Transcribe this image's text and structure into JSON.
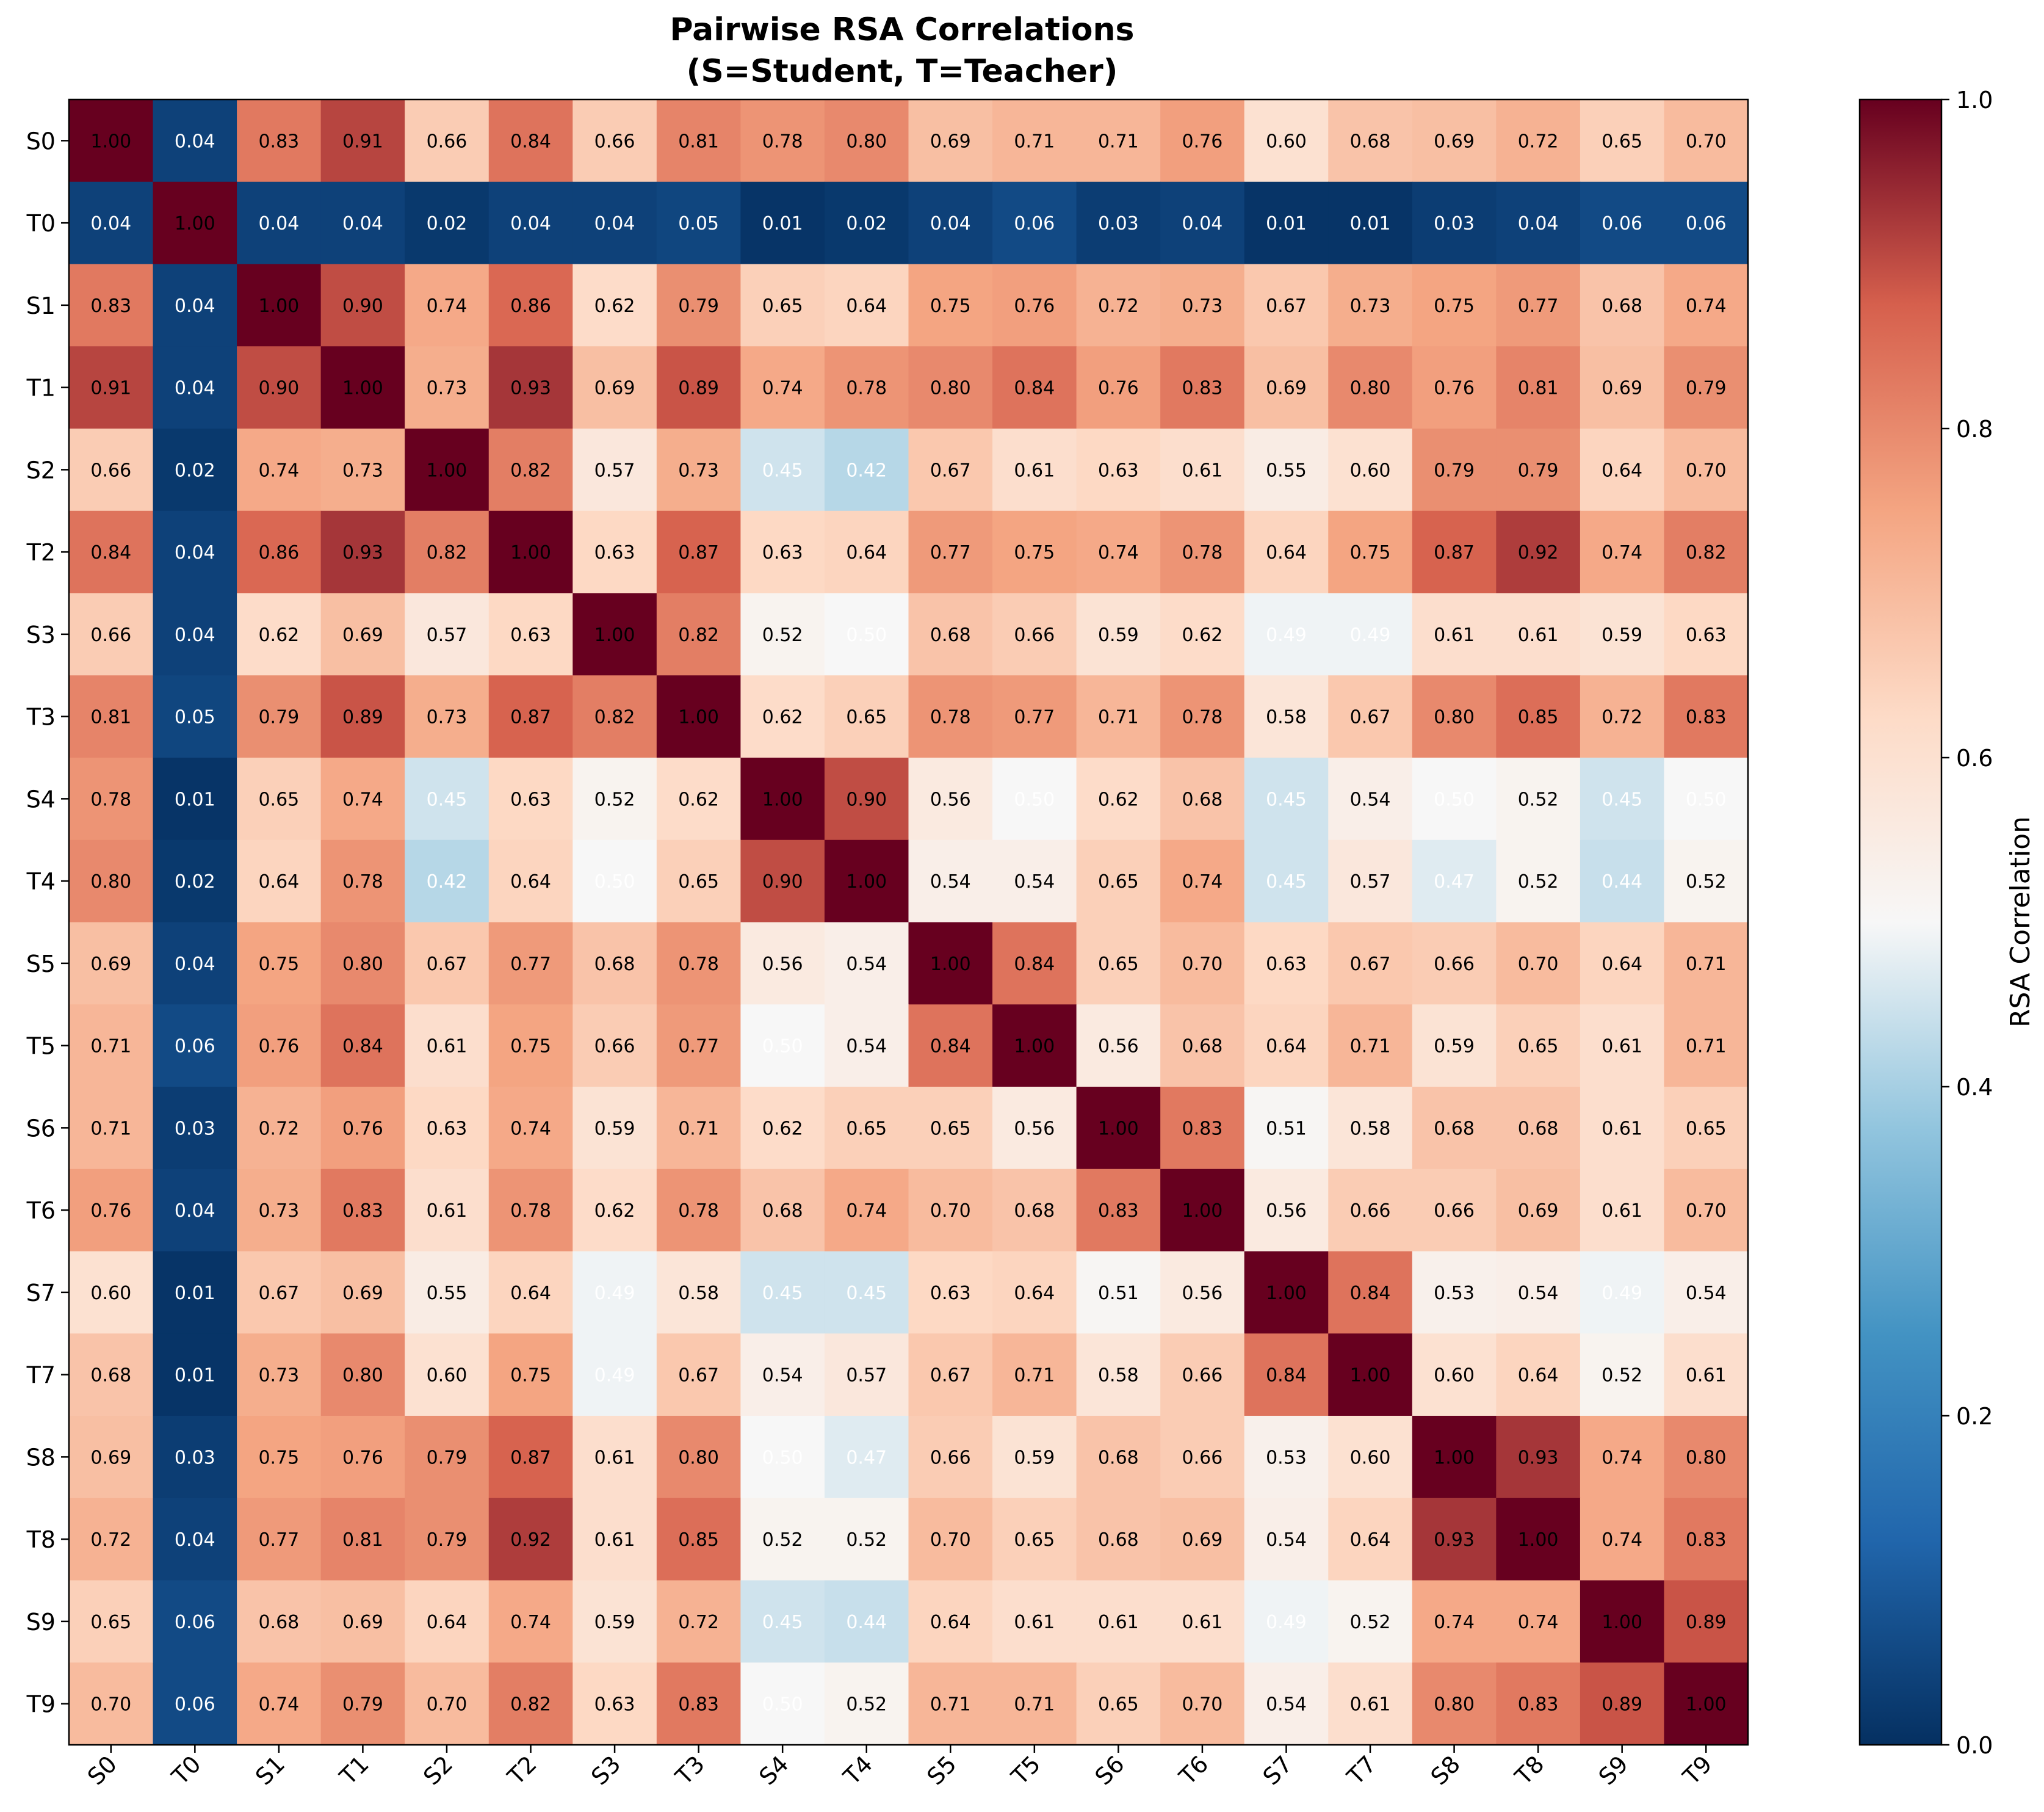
{
  "chart_data": {
    "type": "heatmap",
    "title": "Pairwise RSA Correlations\n(S=Student, T=Teacher)",
    "title_lines": [
      "Pairwise RSA Correlations",
      "(S=Student, T=Teacher)"
    ],
    "labels": [
      "S0",
      "T0",
      "S1",
      "T1",
      "S2",
      "T2",
      "S3",
      "T3",
      "S4",
      "T4",
      "S5",
      "T5",
      "S6",
      "T6",
      "S7",
      "T7",
      "S8",
      "T8",
      "S9",
      "T9"
    ],
    "values": [
      [
        1.0,
        0.04,
        0.83,
        0.91,
        0.66,
        0.84,
        0.66,
        0.81,
        0.78,
        0.8,
        0.69,
        0.71,
        0.71,
        0.76,
        0.6,
        0.68,
        0.69,
        0.72,
        0.65,
        0.7
      ],
      [
        0.04,
        1.0,
        0.04,
        0.04,
        0.02,
        0.04,
        0.04,
        0.05,
        0.01,
        0.02,
        0.04,
        0.06,
        0.03,
        0.04,
        0.01,
        0.01,
        0.03,
        0.04,
        0.06,
        0.06
      ],
      [
        0.83,
        0.04,
        1.0,
        0.9,
        0.74,
        0.86,
        0.62,
        0.79,
        0.65,
        0.64,
        0.75,
        0.76,
        0.72,
        0.73,
        0.67,
        0.73,
        0.75,
        0.77,
        0.68,
        0.74
      ],
      [
        0.91,
        0.04,
        0.9,
        1.0,
        0.73,
        0.93,
        0.69,
        0.89,
        0.74,
        0.78,
        0.8,
        0.84,
        0.76,
        0.83,
        0.69,
        0.8,
        0.76,
        0.81,
        0.69,
        0.79
      ],
      [
        0.66,
        0.02,
        0.74,
        0.73,
        1.0,
        0.82,
        0.57,
        0.73,
        0.45,
        0.42,
        0.67,
        0.61,
        0.63,
        0.61,
        0.55,
        0.6,
        0.79,
        0.79,
        0.64,
        0.7
      ],
      [
        0.84,
        0.04,
        0.86,
        0.93,
        0.82,
        1.0,
        0.63,
        0.87,
        0.63,
        0.64,
        0.77,
        0.75,
        0.74,
        0.78,
        0.64,
        0.75,
        0.87,
        0.92,
        0.74,
        0.82
      ],
      [
        0.66,
        0.04,
        0.62,
        0.69,
        0.57,
        0.63,
        1.0,
        0.82,
        0.52,
        0.5,
        0.68,
        0.66,
        0.59,
        0.62,
        0.49,
        0.49,
        0.61,
        0.61,
        0.59,
        0.63
      ],
      [
        0.81,
        0.05,
        0.79,
        0.89,
        0.73,
        0.87,
        0.82,
        1.0,
        0.62,
        0.65,
        0.78,
        0.77,
        0.71,
        0.78,
        0.58,
        0.67,
        0.8,
        0.85,
        0.72,
        0.83
      ],
      [
        0.78,
        0.01,
        0.65,
        0.74,
        0.45,
        0.63,
        0.52,
        0.62,
        1.0,
        0.9,
        0.56,
        0.5,
        0.62,
        0.68,
        0.45,
        0.54,
        0.5,
        0.52,
        0.45,
        0.5
      ],
      [
        0.8,
        0.02,
        0.64,
        0.78,
        0.42,
        0.64,
        0.5,
        0.65,
        0.9,
        1.0,
        0.54,
        0.54,
        0.65,
        0.74,
        0.45,
        0.57,
        0.47,
        0.52,
        0.44,
        0.52
      ],
      [
        0.69,
        0.04,
        0.75,
        0.8,
        0.67,
        0.77,
        0.68,
        0.78,
        0.56,
        0.54,
        1.0,
        0.84,
        0.65,
        0.7,
        0.63,
        0.67,
        0.66,
        0.7,
        0.64,
        0.71
      ],
      [
        0.71,
        0.06,
        0.76,
        0.84,
        0.61,
        0.75,
        0.66,
        0.77,
        0.5,
        0.54,
        0.84,
        1.0,
        0.56,
        0.68,
        0.64,
        0.71,
        0.59,
        0.65,
        0.61,
        0.71
      ],
      [
        0.71,
        0.03,
        0.72,
        0.76,
        0.63,
        0.74,
        0.59,
        0.71,
        0.62,
        0.65,
        0.65,
        0.56,
        1.0,
        0.83,
        0.51,
        0.58,
        0.68,
        0.68,
        0.61,
        0.65
      ],
      [
        0.76,
        0.04,
        0.73,
        0.83,
        0.61,
        0.78,
        0.62,
        0.78,
        0.68,
        0.74,
        0.7,
        0.68,
        0.83,
        1.0,
        0.56,
        0.66,
        0.66,
        0.69,
        0.61,
        0.7
      ],
      [
        0.6,
        0.01,
        0.67,
        0.69,
        0.55,
        0.64,
        0.49,
        0.58,
        0.45,
        0.45,
        0.63,
        0.64,
        0.51,
        0.56,
        1.0,
        0.84,
        0.53,
        0.54,
        0.49,
        0.54
      ],
      [
        0.68,
        0.01,
        0.73,
        0.8,
        0.6,
        0.75,
        0.49,
        0.67,
        0.54,
        0.57,
        0.67,
        0.71,
        0.58,
        0.66,
        0.84,
        1.0,
        0.6,
        0.64,
        0.52,
        0.61
      ],
      [
        0.69,
        0.03,
        0.75,
        0.76,
        0.79,
        0.87,
        0.61,
        0.8,
        0.5,
        0.47,
        0.66,
        0.59,
        0.68,
        0.66,
        0.53,
        0.6,
        1.0,
        0.93,
        0.74,
        0.8
      ],
      [
        0.72,
        0.04,
        0.77,
        0.81,
        0.79,
        0.92,
        0.61,
        0.85,
        0.52,
        0.52,
        0.7,
        0.65,
        0.68,
        0.69,
        0.54,
        0.64,
        0.93,
        1.0,
        0.74,
        0.83
      ],
      [
        0.65,
        0.06,
        0.68,
        0.69,
        0.64,
        0.74,
        0.59,
        0.72,
        0.45,
        0.44,
        0.64,
        0.61,
        0.61,
        0.61,
        0.49,
        0.52,
        0.74,
        0.74,
        1.0,
        0.89
      ],
      [
        0.7,
        0.06,
        0.74,
        0.79,
        0.7,
        0.82,
        0.63,
        0.83,
        0.5,
        0.52,
        0.71,
        0.71,
        0.65,
        0.7,
        0.54,
        0.61,
        0.8,
        0.83,
        0.89,
        1.0
      ]
    ],
    "value_format": "0.00",
    "colormap": "RdBu_r",
    "colorbar": {
      "label": "RSA Correlation",
      "range": [
        0.0,
        1.0
      ],
      "ticks": [
        "0.0",
        "0.2",
        "0.4",
        "0.6",
        "0.8",
        "1.0"
      ]
    },
    "colors": {
      "dark_text": "#000000",
      "light_text": "#ffffff"
    }
  }
}
